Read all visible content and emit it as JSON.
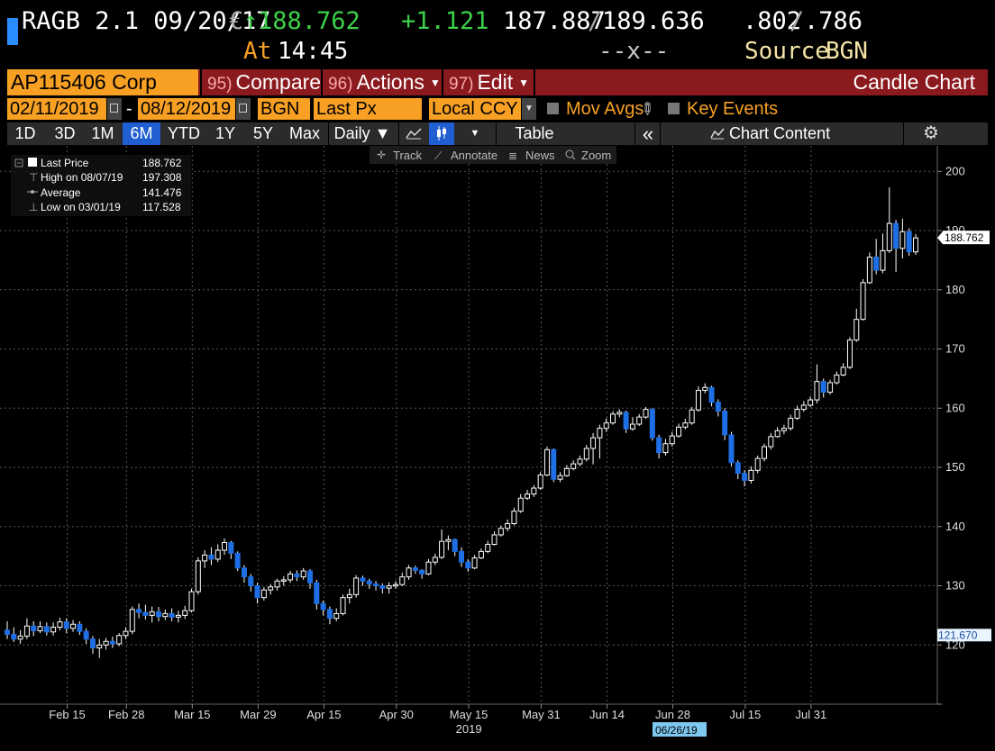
{
  "header": {
    "security": "RAGB 2.1 09/20/17",
    "currency_symbol": "€",
    "up_arrow": "↑",
    "last_price": "188.762",
    "change": "+1.121",
    "bid": "187.887",
    "ask": "189.636",
    "bid_ask_sep": "/",
    "yield_bid": ".802",
    "yield_ask": ".786",
    "yield_sep": "/",
    "time_label": "At",
    "time": "14:45",
    "size_placeholder": "--x--",
    "source_label": "Source",
    "source": "BGN"
  },
  "command_bar": {
    "ticker": "AP115406 Corp",
    "items": [
      {
        "num": "95)",
        "label": "Compare"
      },
      {
        "num": "96)",
        "label": "Actions"
      },
      {
        "num": "97)",
        "label": "Edit"
      }
    ],
    "chart_title": "Candle Chart"
  },
  "date_bar": {
    "start_date": "02/11/2019",
    "dash": "-",
    "end_date": "08/12/2019",
    "source": "BGN",
    "field": "Last Px",
    "currency": "Local CCY",
    "mov_avgs": "Mov Avgs",
    "key_events": "Key Events"
  },
  "toolbar": {
    "periods": [
      "1D",
      "3D",
      "1M",
      "6M",
      "YTD",
      "1Y",
      "5Y",
      "Max"
    ],
    "selected_period": "6M",
    "frequency": "Daily ▼",
    "table": "Table",
    "collapse": "«",
    "chart_content": "Chart Content",
    "gear_icon": "gear-icon"
  },
  "chart_tools": {
    "track": "Track",
    "annotate": "Annotate",
    "news": "News",
    "zoom": "Zoom"
  },
  "legend": [
    {
      "label": "Last Price",
      "value": "188.762"
    },
    {
      "label": "High on 08/07/19",
      "value": "197.308"
    },
    {
      "label": "Average",
      "value": "141.476"
    },
    {
      "label": "Low on 03/01/19",
      "value": "117.528"
    }
  ],
  "colors": {
    "up_candle": "#ffffff",
    "down_candle": "#1e6fe6",
    "price_green": "#3dcf4a",
    "orange": "#f7a023",
    "yellow_text": "#f5e6a8",
    "command_bar": "#8b1a1f"
  },
  "chart_data": {
    "type": "candlestick",
    "ylim": [
      110,
      204
    ],
    "yticks": [
      120,
      130,
      140,
      150,
      160,
      170,
      180,
      190,
      200
    ],
    "x_labels": [
      "Feb 15",
      "Feb 28",
      "Mar 15",
      "Mar 29",
      "Apr 15",
      "Apr 30",
      "May 15",
      "May 31",
      "Jun 14",
      "Jun 28",
      "Jul 15",
      "Jul 31"
    ],
    "year_label": "2019",
    "crosshair_date": "06/26/19",
    "price_tag_last": "188.762",
    "price_tag_low": "121.670",
    "candles": [
      [
        122.5,
        121.8,
        124,
        121
      ],
      [
        121.8,
        121,
        123,
        120.5
      ],
      [
        121,
        121.5,
        122.5,
        120.2
      ],
      [
        121.5,
        123.2,
        124.5,
        121
      ],
      [
        123.2,
        122.4,
        124,
        121.5
      ],
      [
        122.4,
        123.1,
        124,
        122
      ],
      [
        123.1,
        122.2,
        123.8,
        121.6
      ],
      [
        122.2,
        123,
        123.8,
        121.6
      ],
      [
        123,
        123.9,
        124.6,
        122.5
      ],
      [
        123.9,
        122.8,
        124.5,
        122
      ],
      [
        122.8,
        123.5,
        124.2,
        122.2
      ],
      [
        123.5,
        122.3,
        124,
        121.7
      ],
      [
        122.3,
        121,
        122.8,
        120.2
      ],
      [
        121,
        119.5,
        121.5,
        118.5
      ],
      [
        119.5,
        120,
        121,
        117.8
      ],
      [
        120,
        120.6,
        121.2,
        119.2
      ],
      [
        120.6,
        120.2,
        121.4,
        119.5
      ],
      [
        120.2,
        121.6,
        122,
        119.8
      ],
      [
        121.6,
        122.3,
        123,
        121
      ],
      [
        122.3,
        126,
        126.5,
        121.8
      ],
      [
        126,
        125.5,
        127,
        124.5
      ],
      [
        125.5,
        125,
        126.8,
        124.3
      ],
      [
        125,
        125.6,
        126.5,
        123.8
      ],
      [
        125.6,
        124.8,
        126.4,
        124
      ],
      [
        124.8,
        125.3,
        126,
        124.2
      ],
      [
        125.3,
        124.7,
        126.2,
        124
      ],
      [
        124.7,
        125,
        125.8,
        123.8
      ],
      [
        125,
        125.8,
        126.6,
        124.4
      ],
      [
        125.8,
        129,
        129.5,
        125.5
      ],
      [
        129,
        134.2,
        134.8,
        128.5
      ],
      [
        134.2,
        135.2,
        136,
        133
      ],
      [
        135.2,
        134.5,
        136.5,
        133.5
      ],
      [
        134.5,
        136,
        137,
        134
      ],
      [
        136,
        137.3,
        138,
        135.2
      ],
      [
        137.3,
        135.5,
        137.6,
        134.5
      ],
      [
        135.5,
        133,
        135.8,
        132.5
      ],
      [
        133,
        131.5,
        133.5,
        130.5
      ],
      [
        131.5,
        130,
        132,
        129
      ],
      [
        130,
        128,
        130.5,
        127
      ],
      [
        128,
        129.3,
        129.8,
        127.5
      ],
      [
        129.3,
        129.8,
        130.3,
        128.5
      ],
      [
        129.8,
        130.8,
        131.2,
        129.2
      ],
      [
        130.8,
        131,
        131.6,
        130
      ],
      [
        131,
        132,
        132.5,
        130.5
      ],
      [
        132,
        131.5,
        132.6,
        130.8
      ],
      [
        131.5,
        132.5,
        133,
        131
      ],
      [
        132.5,
        130.5,
        132.8,
        129.5
      ],
      [
        130.5,
        127,
        131,
        126
      ],
      [
        127,
        126,
        127.5,
        125
      ],
      [
        126,
        124.5,
        126.5,
        123.5
      ],
      [
        124.5,
        125.3,
        126.2,
        124
      ],
      [
        125.3,
        128,
        128.5,
        125
      ],
      [
        128,
        128.5,
        129.5,
        127
      ],
      [
        128.5,
        131.3,
        131.8,
        128
      ],
      [
        131.3,
        130.8,
        131.7,
        130
      ],
      [
        130.8,
        130.3,
        131.2,
        129.5
      ],
      [
        130.3,
        130,
        130.8,
        129.2
      ],
      [
        130,
        129.6,
        130.4,
        128.7
      ],
      [
        129.6,
        130,
        130.6,
        128.7
      ],
      [
        130,
        130.2,
        130.8,
        129.5
      ],
      [
        130.2,
        131.5,
        132.2,
        130
      ],
      [
        131.5,
        133,
        133.5,
        131
      ],
      [
        133,
        132.6,
        133.4,
        132
      ],
      [
        132.6,
        132,
        132.8,
        131.2
      ],
      [
        132,
        134,
        134.5,
        131.8
      ],
      [
        134,
        134.8,
        135.4,
        133.5
      ],
      [
        134.8,
        137.5,
        139.5,
        134.5
      ],
      [
        137.5,
        137.8,
        138.5,
        136
      ],
      [
        137.8,
        135.8,
        138,
        135
      ],
      [
        135.8,
        134,
        136.5,
        133.2
      ],
      [
        134,
        133,
        134.5,
        132.4
      ],
      [
        133,
        134.7,
        135.2,
        132.8
      ],
      [
        134.7,
        135.8,
        136.3,
        134.5
      ],
      [
        135.8,
        137,
        137.6,
        135.5
      ],
      [
        137,
        138.6,
        139.2,
        136.8
      ],
      [
        138.6,
        139.7,
        140.2,
        138.3
      ],
      [
        139.7,
        140.5,
        141.2,
        139.2
      ],
      [
        140.5,
        142.6,
        143.2,
        140.2
      ],
      [
        142.6,
        144.8,
        145.5,
        142.3
      ],
      [
        144.8,
        145.5,
        146.2,
        144.5
      ],
      [
        145.5,
        146.5,
        147,
        145
      ],
      [
        146.5,
        148.7,
        149.2,
        146.2
      ],
      [
        148.7,
        153,
        153.5,
        148.5
      ],
      [
        153,
        148,
        153.2,
        147.5
      ],
      [
        148,
        148.6,
        149.2,
        147.5
      ],
      [
        148.6,
        149.8,
        150.4,
        148.4
      ],
      [
        149.8,
        150.6,
        151.2,
        149.5
      ],
      [
        150.6,
        151.4,
        152,
        150.2
      ],
      [
        151.4,
        153.2,
        153.8,
        151
      ],
      [
        153.2,
        155,
        155.8,
        150.5
      ],
      [
        155,
        156.6,
        157.2,
        151.5
      ],
      [
        156.6,
        157.5,
        158.3,
        156
      ],
      [
        157.5,
        159,
        159.5,
        157.2
      ],
      [
        159,
        159.3,
        159.8,
        158.5
      ],
      [
        159.3,
        156.5,
        159.6,
        155.8
      ],
      [
        156.5,
        157.3,
        158.5,
        156.2
      ],
      [
        157.3,
        158.5,
        159,
        157
      ],
      [
        158.5,
        159.8,
        160.2,
        158.2
      ],
      [
        159.8,
        155,
        160,
        154.5
      ],
      [
        155,
        152.5,
        155.5,
        151.5
      ],
      [
        152.5,
        154,
        154.8,
        152
      ],
      [
        154,
        155.3,
        156,
        153.5
      ],
      [
        155.3,
        156.8,
        157.4,
        155
      ],
      [
        156.8,
        157.5,
        158.2,
        156.4
      ],
      [
        157.5,
        159.7,
        160.2,
        157.2
      ],
      [
        159.7,
        163,
        163.7,
        159.4
      ],
      [
        163,
        163.5,
        164.2,
        162.5
      ],
      [
        163.5,
        161,
        163.8,
        160.3
      ],
      [
        161,
        159.5,
        161.5,
        158.6
      ],
      [
        159.5,
        155.5,
        160,
        154.6
      ],
      [
        155.5,
        150.8,
        156,
        150.2
      ],
      [
        150.8,
        149,
        151.2,
        148
      ],
      [
        149,
        147.8,
        149.5,
        146.8
      ],
      [
        147.8,
        149.5,
        150.2,
        147.3
      ],
      [
        149.5,
        151.5,
        152,
        149
      ],
      [
        151.5,
        153.5,
        154,
        151
      ],
      [
        153.5,
        155.2,
        155.8,
        153
      ],
      [
        155.2,
        156.2,
        156.8,
        155
      ],
      [
        156.2,
        156.6,
        157.2,
        155.6
      ],
      [
        156.6,
        158.3,
        158.9,
        156.2
      ],
      [
        158.3,
        159.8,
        160.4,
        158
      ],
      [
        159.8,
        160.5,
        161.2,
        159.4
      ],
      [
        160.5,
        161.4,
        162,
        160.2
      ],
      [
        161.4,
        164.5,
        167.4,
        160.8
      ],
      [
        164.5,
        162.7,
        165,
        161.8
      ],
      [
        162.7,
        164.3,
        164.8,
        162.3
      ],
      [
        164.3,
        165.6,
        166.2,
        164
      ],
      [
        165.6,
        166.9,
        167.6,
        165.4
      ],
      [
        166.9,
        171.5,
        172,
        166.6
      ],
      [
        171.5,
        175,
        176.8,
        171.2
      ],
      [
        175,
        181.2,
        181.8,
        174.8
      ],
      [
        181.2,
        185.5,
        186.3,
        181
      ],
      [
        185.5,
        183.3,
        188.6,
        182.6
      ],
      [
        183.3,
        186.6,
        189.5,
        182.8
      ],
      [
        186.6,
        191.2,
        197.3,
        186.2
      ],
      [
        191.2,
        187,
        191.8,
        183
      ],
      [
        187,
        189.8,
        192,
        185.3
      ],
      [
        189.8,
        186.4,
        190.4,
        185.7
      ],
      [
        186.4,
        188.762,
        189.4,
        185.9
      ]
    ]
  }
}
